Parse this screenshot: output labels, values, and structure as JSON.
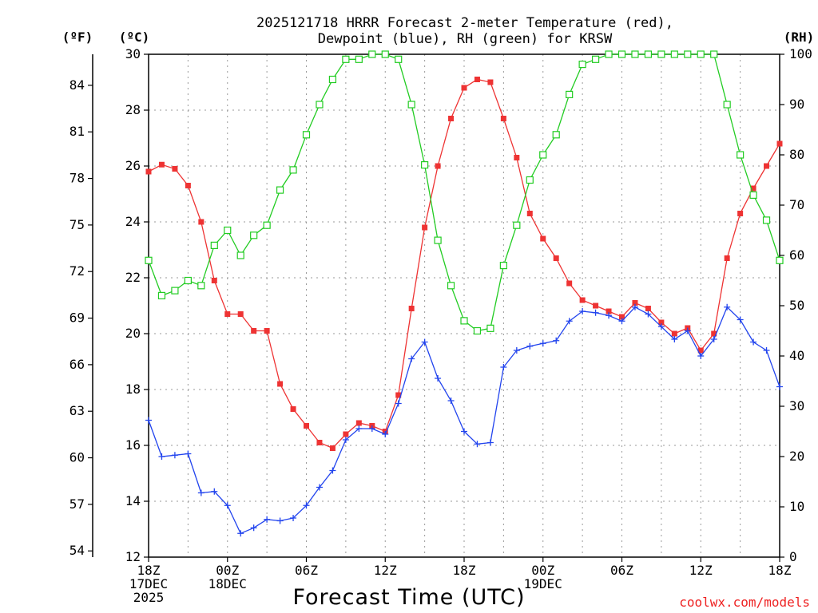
{
  "chart_data": {
    "type": "line",
    "title_lines": [
      "2025121718 HRRR Forecast 2-meter Temperature (red),",
      "Dewpoint (blue), RH (green) for KRSW"
    ],
    "xlabel": "Forecast Time (UTC)",
    "credit": "coolwx.com/models",
    "units": {
      "fahrenheit": "(ºF)",
      "celsius": "(ºC)",
      "rh": "(RH)"
    },
    "x_range": [
      0,
      48
    ],
    "x_ticks": [
      {
        "x": 0,
        "lines": [
          "18Z",
          "17DEC",
          "2025"
        ]
      },
      {
        "x": 6,
        "lines": [
          "00Z",
          "18DEC"
        ]
      },
      {
        "x": 12,
        "lines": [
          "06Z"
        ]
      },
      {
        "x": 18,
        "lines": [
          "12Z"
        ]
      },
      {
        "x": 24,
        "lines": [
          "18Z"
        ]
      },
      {
        "x": 30,
        "lines": [
          "00Z",
          "19DEC"
        ]
      },
      {
        "x": 36,
        "lines": [
          "06Z"
        ]
      },
      {
        "x": 42,
        "lines": [
          "12Z"
        ]
      },
      {
        "x": 48,
        "lines": [
          "18Z"
        ]
      }
    ],
    "celsius_axis": {
      "range": [
        12,
        30
      ],
      "ticks": [
        "12",
        "14",
        "16",
        "18",
        "20",
        "22",
        "24",
        "26",
        "28",
        "30"
      ]
    },
    "fahrenheit_axis": {
      "ticks": [
        "54",
        "57",
        "60",
        "63",
        "66",
        "69",
        "72",
        "75",
        "78",
        "81",
        "84"
      ]
    },
    "rh_axis": {
      "range": [
        0,
        100
      ],
      "ticks": [
        "0",
        "10",
        "20",
        "30",
        "40",
        "50",
        "60",
        "70",
        "80",
        "90",
        "100"
      ]
    },
    "series": [
      {
        "name": "Temperature",
        "axis": "celsius",
        "color": "#ee3333",
        "marker": "filled-square",
        "values": [
          25.8,
          26.05,
          25.9,
          25.3,
          24.0,
          21.9,
          20.7,
          20.7,
          20.1,
          20.1,
          18.2,
          17.3,
          16.7,
          16.1,
          15.9,
          16.4,
          16.8,
          16.7,
          16.5,
          17.8,
          20.9,
          23.8,
          26.0,
          27.7,
          28.8,
          29.1,
          29.0,
          27.7,
          26.3,
          24.3,
          23.4,
          22.7,
          21.8,
          21.2,
          21.0,
          20.8,
          20.6,
          21.1,
          20.9,
          20.4,
          20.0,
          20.2,
          19.4,
          20.0,
          22.7,
          24.3,
          25.2,
          26.0,
          26.8
        ]
      },
      {
        "name": "Dewpoint",
        "axis": "celsius",
        "color": "#2244ee",
        "marker": "plus",
        "values": [
          16.9,
          15.6,
          15.65,
          15.7,
          14.3,
          14.35,
          13.85,
          12.85,
          13.05,
          13.35,
          13.3,
          13.4,
          13.85,
          14.5,
          15.1,
          16.2,
          16.6,
          16.6,
          16.4,
          17.5,
          19.1,
          19.7,
          18.4,
          17.6,
          16.5,
          16.05,
          16.1,
          18.8,
          19.4,
          19.55,
          19.65,
          19.75,
          20.45,
          20.8,
          20.75,
          20.65,
          20.45,
          20.95,
          20.7,
          20.25,
          19.8,
          20.1,
          19.2,
          19.8,
          20.95,
          20.5,
          19.7,
          19.4,
          18.1
        ]
      },
      {
        "name": "RH",
        "axis": "rh",
        "color": "#22cc22",
        "marker": "open-square",
        "values": [
          59,
          52,
          53,
          55,
          54,
          62,
          65,
          60,
          64,
          66,
          73,
          77,
          84,
          90,
          95,
          99,
          99,
          100,
          100,
          99,
          90,
          78,
          63,
          54,
          47,
          45,
          45.5,
          58,
          66,
          75,
          80,
          84,
          92,
          98,
          99,
          100,
          100,
          100,
          100,
          100,
          100,
          100,
          100,
          100,
          90,
          80,
          72,
          67,
          59
        ]
      }
    ]
  }
}
